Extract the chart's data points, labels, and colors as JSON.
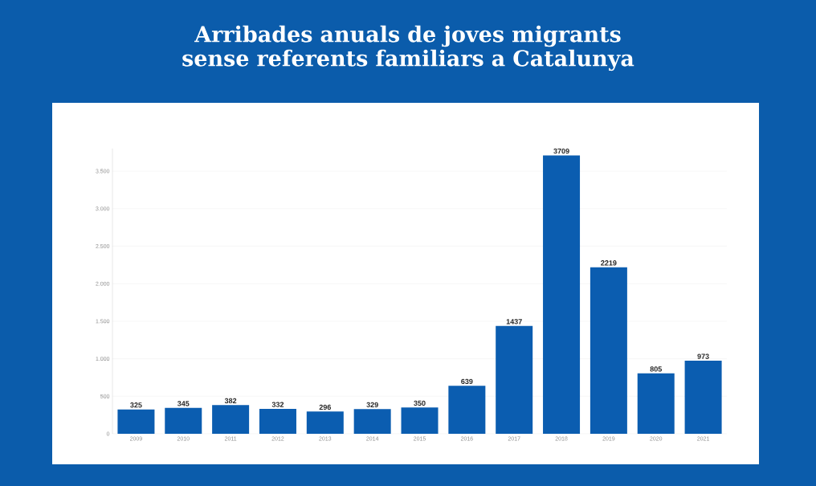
{
  "chart_data": {
    "type": "bar",
    "title": "Arribades anuals de joves migrants sense referents familiars a Catalunya",
    "categories": [
      "2009",
      "2010",
      "2011",
      "2012",
      "2013",
      "2014",
      "2015",
      "2016",
      "2017",
      "2018",
      "2019",
      "2020",
      "2021"
    ],
    "values": [
      325,
      345,
      382,
      332,
      296,
      329,
      350,
      639,
      1437,
      3709,
      2219,
      805,
      973
    ],
    "color": "#0b5db0",
    "ylim": [
      0,
      3800
    ],
    "yticks": [
      0,
      500,
      {
        "value": 1000,
        "label": "1.000"
      },
      {
        "value": 1500,
        "label": "1.500"
      },
      {
        "value": 2000,
        "label": "2.000"
      },
      {
        "value": 2500,
        "label": "2.500"
      },
      {
        "value": 3000,
        "label": "3.000"
      },
      {
        "value": 3500,
        "label": "3.500"
      }
    ],
    "grid": "y",
    "data_labels": true
  }
}
